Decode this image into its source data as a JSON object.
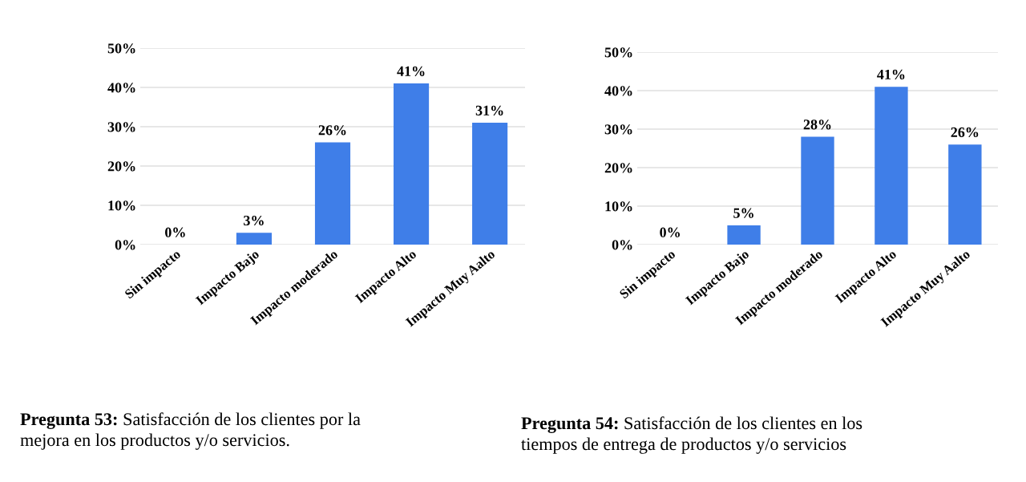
{
  "chart_data": [
    {
      "type": "bar",
      "categories": [
        "Sin impacto",
        "Impacto Bajo",
        "Impacto moderado",
        "Impacto Alto",
        "Impacto Muy Aalto"
      ],
      "values": [
        0,
        3,
        26,
        41,
        31
      ],
      "color": "#3f7ee8",
      "ylim": [
        0,
        50
      ],
      "yticks": [
        {
          "value": 0,
          "label": "0%"
        },
        {
          "value": 10,
          "label": "10%"
        },
        {
          "value": 20,
          "label": "20%"
        },
        {
          "value": 30,
          "label": "30%"
        },
        {
          "value": 40,
          "label": "40%"
        },
        {
          "value": 50,
          "label": "50%"
        }
      ],
      "grid": "y",
      "data_labels": true,
      "value_labels": [
        "0%",
        "3%",
        "26%",
        "41%",
        "31%"
      ],
      "annotations": [
        "Pregunta 53:",
        "Satisfacción de los clientes por la",
        "mejora en los productos y/o servicios."
      ]
    },
    {
      "type": "bar",
      "categories": [
        "Sin impacto",
        "Impacto Bajo",
        "Impacto moderado",
        "Impacto Alto",
        "Impacto Muy Aalto"
      ],
      "values": [
        0,
        5,
        28,
        41,
        26
      ],
      "color": "#3f7ee8",
      "ylim": [
        0,
        50
      ],
      "yticks": [
        {
          "value": 0,
          "label": "0%"
        },
        {
          "value": 10,
          "label": "10%"
        },
        {
          "value": 20,
          "label": "20%"
        },
        {
          "value": 30,
          "label": "30%"
        },
        {
          "value": 40,
          "label": "40%"
        },
        {
          "value": 50,
          "label": "50%"
        }
      ],
      "grid": "y",
      "data_labels": true,
      "value_labels": [
        "0%",
        "5%",
        "28%",
        "41%",
        "26%"
      ],
      "annotations": [
        "Pregunta 54:",
        "Satisfacción de los clientes en los",
        "tiempos de entrega de productos y/o servicios"
      ]
    }
  ]
}
